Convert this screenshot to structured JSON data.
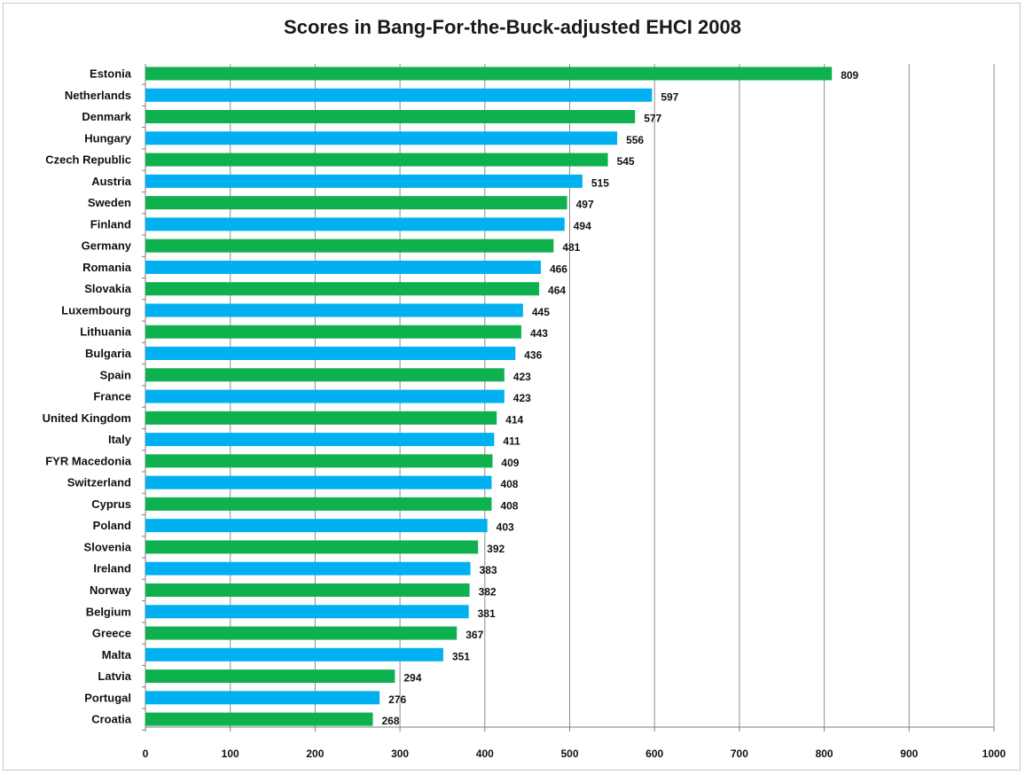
{
  "chart_data": {
    "type": "bar",
    "orientation": "horizontal",
    "title": "Scores in Bang-For-the-Buck-adjusted EHCI 2008",
    "xlabel": "",
    "ylabel": "",
    "xlim": [
      0,
      1000
    ],
    "x_ticks": [
      0,
      100,
      200,
      300,
      400,
      500,
      600,
      700,
      800,
      900,
      1000
    ],
    "grid": "vertical",
    "legend": "none",
    "colors": {
      "green": "#0fb04e",
      "blue": "#00b0f0"
    },
    "bars": [
      {
        "label": "Estonia",
        "value": 809,
        "color": "green"
      },
      {
        "label": "Netherlands",
        "value": 597,
        "color": "blue"
      },
      {
        "label": "Denmark",
        "value": 577,
        "color": "green"
      },
      {
        "label": "Hungary",
        "value": 556,
        "color": "blue"
      },
      {
        "label": "Czech Republic",
        "value": 545,
        "color": "green"
      },
      {
        "label": "Austria",
        "value": 515,
        "color": "blue"
      },
      {
        "label": "Sweden",
        "value": 497,
        "color": "green"
      },
      {
        "label": "Finland",
        "value": 494,
        "color": "blue"
      },
      {
        "label": "Germany",
        "value": 481,
        "color": "green"
      },
      {
        "label": "Romania",
        "value": 466,
        "color": "blue"
      },
      {
        "label": "Slovakia",
        "value": 464,
        "color": "green"
      },
      {
        "label": "Luxembourg",
        "value": 445,
        "color": "blue"
      },
      {
        "label": "Lithuania",
        "value": 443,
        "color": "green"
      },
      {
        "label": "Bulgaria",
        "value": 436,
        "color": "blue"
      },
      {
        "label": "Spain",
        "value": 423,
        "color": "green"
      },
      {
        "label": "France",
        "value": 423,
        "color": "blue"
      },
      {
        "label": "United Kingdom",
        "value": 414,
        "color": "green"
      },
      {
        "label": "Italy",
        "value": 411,
        "color": "blue"
      },
      {
        "label": "FYR Macedonia",
        "value": 409,
        "color": "green"
      },
      {
        "label": "Switzerland",
        "value": 408,
        "color": "blue"
      },
      {
        "label": "Cyprus",
        "value": 408,
        "color": "green"
      },
      {
        "label": "Poland",
        "value": 403,
        "color": "blue"
      },
      {
        "label": "Slovenia",
        "value": 392,
        "color": "green"
      },
      {
        "label": "Ireland",
        "value": 383,
        "color": "blue"
      },
      {
        "label": "Norway",
        "value": 382,
        "color": "green"
      },
      {
        "label": "Belgium",
        "value": 381,
        "color": "blue"
      },
      {
        "label": "Greece",
        "value": 367,
        "color": "green"
      },
      {
        "label": "Malta",
        "value": 351,
        "color": "blue"
      },
      {
        "label": "Latvia",
        "value": 294,
        "color": "green"
      },
      {
        "label": "Portugal",
        "value": 276,
        "color": "blue"
      },
      {
        "label": "Croatia",
        "value": 268,
        "color": "green"
      }
    ]
  }
}
